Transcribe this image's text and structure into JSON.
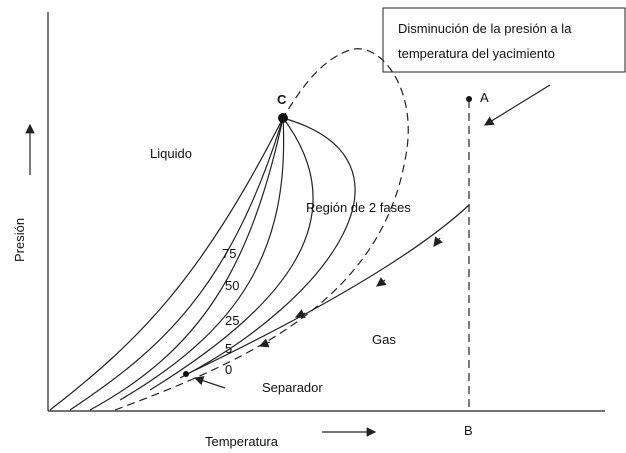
{
  "box": {
    "lines": [
      "Disminución de la presión a la",
      "temperatura del yacimiento"
    ]
  },
  "axes": {
    "y_label": "Presión",
    "x_label": "Temperatura"
  },
  "points": {
    "critical": "C",
    "a": "A",
    "b": "B"
  },
  "regions": {
    "liquid": "Liquido",
    "two_phase": "Región de 2 fases",
    "gas": "Gas",
    "separator": "Separador"
  },
  "quality_lines": [
    "75",
    "50",
    "25",
    "5",
    "0"
  ]
}
